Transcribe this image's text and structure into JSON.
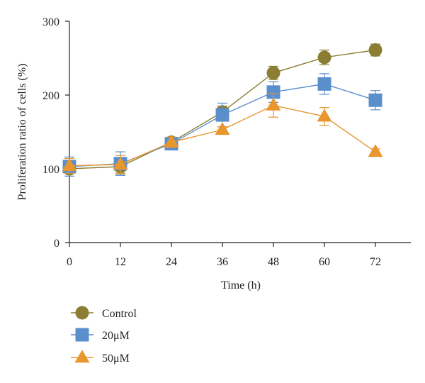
{
  "chart_data": {
    "type": "line",
    "title": "",
    "xlabel": "Time (h)",
    "ylabel": "Proliferation ratio of cells (%)",
    "x": [
      0,
      12,
      24,
      36,
      48,
      60,
      72
    ],
    "xticks": [
      "0",
      "12",
      "24",
      "36",
      "48",
      "60",
      "72"
    ],
    "yticks": [
      "0",
      "100",
      "200",
      "300"
    ],
    "xlim": [
      0,
      72
    ],
    "ylim": [
      0,
      300
    ],
    "grid": false,
    "legend_position": "bottom-left",
    "series": [
      {
        "name": "Control",
        "marker": "circle",
        "color": "#8B7D32",
        "values": [
          100,
          103,
          136,
          177,
          230,
          251,
          261
        ],
        "errors": [
          10,
          10,
          6,
          8,
          9,
          10,
          8
        ]
      },
      {
        "name": "20μM",
        "marker": "square",
        "color": "#5B8FCC",
        "values": [
          103,
          107,
          134,
          173,
          204,
          215,
          193
        ],
        "errors": [
          13,
          16,
          6,
          16,
          14,
          14,
          13
        ]
      },
      {
        "name": "50μM",
        "marker": "triangle",
        "color": "#E8962E",
        "values": [
          104,
          106,
          136,
          153,
          186,
          171,
          123
        ],
        "errors": [
          10,
          12,
          7,
          4,
          16,
          12,
          4
        ]
      }
    ]
  }
}
